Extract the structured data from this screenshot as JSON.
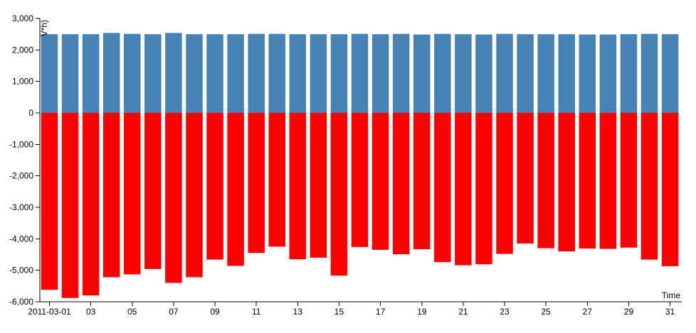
{
  "chart_data": {
    "type": "bar",
    "xlabel": "Time",
    "ylabel": "V*h)",
    "ylim": [
      -6000,
      3000
    ],
    "y_ticks": [
      3000,
      2000,
      1000,
      0,
      -1000,
      -2000,
      -3000,
      -4000,
      -5000,
      -6000
    ],
    "y_tick_labels": [
      "3,000",
      "2,000",
      "1,000",
      "0",
      "-1,000",
      "-2,000",
      "-3,000",
      "-4,000",
      "-5,000",
      "-6,000"
    ],
    "categories": [
      "2011-03-01",
      "2011-03-02",
      "2011-03-03",
      "2011-03-04",
      "2011-03-05",
      "2011-03-06",
      "2011-03-07",
      "2011-03-08",
      "2011-03-09",
      "2011-03-10",
      "2011-03-11",
      "2011-03-12",
      "2011-03-13",
      "2011-03-14",
      "2011-03-15",
      "2011-03-16",
      "2011-03-17",
      "2011-03-18",
      "2011-03-19",
      "2011-03-20",
      "2011-03-21",
      "2011-03-22",
      "2011-03-23",
      "2011-03-24",
      "2011-03-25",
      "2011-03-26",
      "2011-03-27",
      "2011-03-28",
      "2011-03-29",
      "2011-03-30",
      "2011-03-31"
    ],
    "x_tick_labels": [
      {
        "day": 1,
        "label": "2011-03-01"
      },
      {
        "day": 3,
        "label": "03"
      },
      {
        "day": 5,
        "label": "05"
      },
      {
        "day": 7,
        "label": "07"
      },
      {
        "day": 9,
        "label": "09"
      },
      {
        "day": 11,
        "label": "11"
      },
      {
        "day": 13,
        "label": "13"
      },
      {
        "day": 15,
        "label": "15"
      },
      {
        "day": 17,
        "label": "17"
      },
      {
        "day": 19,
        "label": "19"
      },
      {
        "day": 21,
        "label": "21"
      },
      {
        "day": 23,
        "label": "23"
      },
      {
        "day": 25,
        "label": "25"
      },
      {
        "day": 27,
        "label": "27"
      },
      {
        "day": 29,
        "label": "29"
      },
      {
        "day": 31,
        "label": "31"
      }
    ],
    "series": [
      {
        "color": "#4682b4",
        "values": [
          2500,
          2500,
          2500,
          2540,
          2510,
          2500,
          2540,
          2500,
          2500,
          2500,
          2510,
          2510,
          2500,
          2500,
          2500,
          2510,
          2500,
          2510,
          2490,
          2510,
          2500,
          2490,
          2510,
          2500,
          2500,
          2500,
          2490,
          2490,
          2500,
          2510,
          2500
        ]
      },
      {
        "color": "#ff0000",
        "values": [
          -5620,
          -5880,
          -5800,
          -5220,
          -5130,
          -4960,
          -5400,
          -5220,
          -4660,
          -4860,
          -4450,
          -4250,
          -4650,
          -4600,
          -5170,
          -4260,
          -4350,
          -4490,
          -4330,
          -4740,
          -4840,
          -4810,
          -4480,
          -4150,
          -4300,
          -4400,
          -4310,
          -4320,
          -4280,
          -4660,
          -4870
        ]
      }
    ]
  }
}
